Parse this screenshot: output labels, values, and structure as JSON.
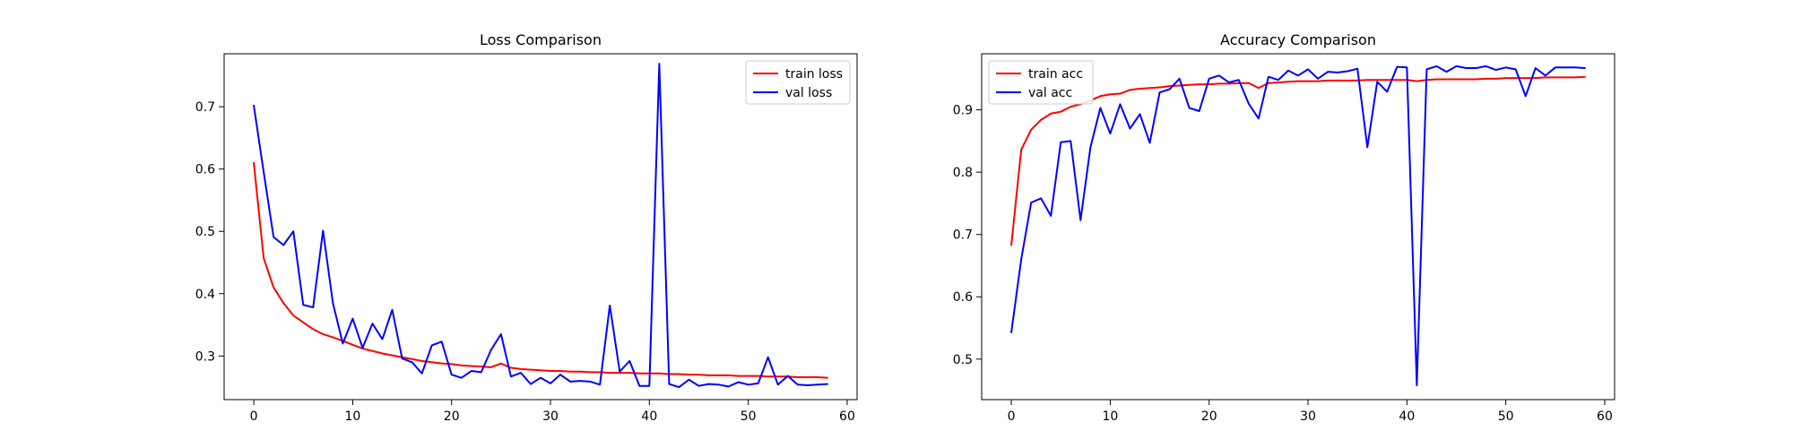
{
  "chart_data": [
    {
      "type": "line",
      "title": "Loss Comparison",
      "xlabel": "",
      "ylabel": "",
      "xlim": [
        -3,
        61
      ],
      "ylim": [
        0.23,
        0.785
      ],
      "xticks": [
        0,
        10,
        20,
        30,
        40,
        50,
        60
      ],
      "yticks": [
        0.3,
        0.4,
        0.5,
        0.6,
        0.7
      ],
      "ytick_labels": [
        "0.3",
        "0.4",
        "0.5",
        "0.6",
        "0.7"
      ],
      "legend_position": "top-right",
      "grid": false,
      "series": [
        {
          "name": "train loss",
          "color": "#ff0000",
          "values": [
            0.61,
            0.457,
            0.41,
            0.385,
            0.365,
            0.354,
            0.343,
            0.335,
            0.33,
            0.324,
            0.318,
            0.312,
            0.308,
            0.304,
            0.301,
            0.298,
            0.295,
            0.292,
            0.29,
            0.288,
            0.287,
            0.285,
            0.284,
            0.283,
            0.282,
            0.288,
            0.281,
            0.279,
            0.278,
            0.277,
            0.276,
            0.276,
            0.275,
            0.275,
            0.274,
            0.274,
            0.273,
            0.273,
            0.273,
            0.272,
            0.272,
            0.272,
            0.271,
            0.271,
            0.27,
            0.27,
            0.269,
            0.269,
            0.269,
            0.268,
            0.268,
            0.268,
            0.267,
            0.267,
            0.267,
            0.266,
            0.266,
            0.266,
            0.265
          ]
        },
        {
          "name": "val loss",
          "color": "#0000ff",
          "values": [
            0.702,
            0.595,
            0.491,
            0.478,
            0.5,
            0.382,
            0.378,
            0.501,
            0.385,
            0.32,
            0.36,
            0.313,
            0.352,
            0.327,
            0.374,
            0.296,
            0.29,
            0.272,
            0.317,
            0.323,
            0.27,
            0.265,
            0.276,
            0.274,
            0.31,
            0.335,
            0.267,
            0.273,
            0.255,
            0.265,
            0.256,
            0.27,
            0.259,
            0.26,
            0.259,
            0.254,
            0.381,
            0.275,
            0.292,
            0.252,
            0.252,
            0.769,
            0.255,
            0.25,
            0.262,
            0.252,
            0.255,
            0.254,
            0.251,
            0.258,
            0.254,
            0.256,
            0.298,
            0.254,
            0.268,
            0.254,
            0.253,
            0.254,
            0.255
          ]
        }
      ]
    },
    {
      "type": "line",
      "title": "Accuracy Comparison",
      "xlabel": "",
      "ylabel": "",
      "xlim": [
        -3,
        61
      ],
      "ylim": [
        0.435,
        0.99
      ],
      "xticks": [
        0,
        10,
        20,
        30,
        40,
        50,
        60
      ],
      "yticks": [
        0.5,
        0.6,
        0.7,
        0.8,
        0.9
      ],
      "ytick_labels": [
        "0.5",
        "0.6",
        "0.7",
        "0.8",
        "0.9"
      ],
      "legend_position": "top-left",
      "grid": false,
      "series": [
        {
          "name": "train acc",
          "color": "#ff0000",
          "values": [
            0.683,
            0.836,
            0.868,
            0.884,
            0.894,
            0.897,
            0.905,
            0.909,
            0.915,
            0.922,
            0.925,
            0.926,
            0.932,
            0.934,
            0.935,
            0.936,
            0.938,
            0.939,
            0.94,
            0.941,
            0.941,
            0.942,
            0.942,
            0.943,
            0.943,
            0.935,
            0.943,
            0.944,
            0.945,
            0.946,
            0.946,
            0.946,
            0.947,
            0.947,
            0.947,
            0.947,
            0.948,
            0.948,
            0.948,
            0.948,
            0.948,
            0.946,
            0.948,
            0.949,
            0.949,
            0.949,
            0.949,
            0.949,
            0.95,
            0.95,
            0.951,
            0.951,
            0.951,
            0.951,
            0.952,
            0.952,
            0.952,
            0.952,
            0.953
          ]
        },
        {
          "name": "val acc",
          "color": "#0000ff",
          "values": [
            0.543,
            0.66,
            0.751,
            0.758,
            0.73,
            0.848,
            0.85,
            0.723,
            0.84,
            0.903,
            0.862,
            0.909,
            0.87,
            0.893,
            0.847,
            0.928,
            0.933,
            0.95,
            0.903,
            0.898,
            0.95,
            0.955,
            0.944,
            0.948,
            0.91,
            0.886,
            0.953,
            0.948,
            0.963,
            0.955,
            0.965,
            0.95,
            0.961,
            0.96,
            0.962,
            0.966,
            0.84,
            0.945,
            0.929,
            0.969,
            0.968,
            0.458,
            0.965,
            0.97,
            0.961,
            0.97,
            0.967,
            0.967,
            0.97,
            0.964,
            0.968,
            0.965,
            0.922,
            0.967,
            0.955,
            0.968,
            0.968,
            0.968,
            0.967
          ]
        }
      ]
    }
  ]
}
